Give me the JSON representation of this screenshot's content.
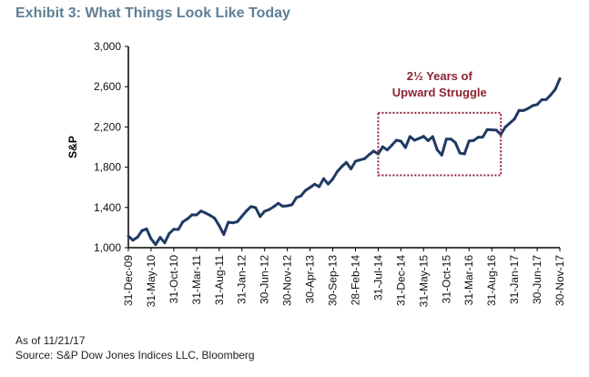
{
  "title": "Exhibit 3: What Things Look Like Today",
  "footnotes": {
    "as_of": "As of 11/21/17",
    "source": "Source: S&P Dow Jones Indices LLC, Bloomberg"
  },
  "chart_data": {
    "type": "line",
    "title": "Exhibit 3: What Things Look Like Today",
    "ylabel": "S&P",
    "xlabel": "",
    "ylim": [
      1000,
      3000
    ],
    "yticks": [
      1000,
      1400,
      1800,
      2200,
      2600,
      3000
    ],
    "ytick_labels": [
      "1,000",
      "1,400",
      "1,800",
      "2,200",
      "2,600",
      "3,000"
    ],
    "xlim": [
      "2009-12-31",
      "2017-11-30"
    ],
    "xtick_labels": [
      "31-Dec-09",
      "31-May-10",
      "31-Oct-10",
      "31-Mar-11",
      "31-Aug-11",
      "31-Jan-12",
      "30-Jun-12",
      "30-Nov-12",
      "30-Apr-13",
      "30-Sep-13",
      "28-Feb-14",
      "31-Jul-14",
      "31-Dec-14",
      "31-May-15",
      "31-Oct-15",
      "31-Mar-16",
      "31-Aug-16",
      "31-Jan-17",
      "30-Jun-17",
      "30-Nov-17"
    ],
    "grid": false,
    "line_color": "#1f3a64",
    "series": [
      {
        "x": [
          "2009-12",
          "2010-01",
          "2010-02",
          "2010-03",
          "2010-04",
          "2010-05",
          "2010-06",
          "2010-07",
          "2010-08",
          "2010-09",
          "2010-10",
          "2010-11",
          "2010-12",
          "2011-01",
          "2011-02",
          "2011-03",
          "2011-04",
          "2011-05",
          "2011-06",
          "2011-07",
          "2011-08",
          "2011-09",
          "2011-10",
          "2011-11",
          "2011-12",
          "2012-01",
          "2012-02",
          "2012-03",
          "2012-04",
          "2012-05",
          "2012-06",
          "2012-07",
          "2012-08",
          "2012-09",
          "2012-10",
          "2012-11",
          "2012-12",
          "2013-01",
          "2013-02",
          "2013-03",
          "2013-04",
          "2013-05",
          "2013-06",
          "2013-07",
          "2013-08",
          "2013-09",
          "2013-10",
          "2013-11",
          "2013-12",
          "2014-01",
          "2014-02",
          "2014-03",
          "2014-04",
          "2014-05",
          "2014-06",
          "2014-07",
          "2014-08",
          "2014-09",
          "2014-10",
          "2014-11",
          "2014-12",
          "2015-01",
          "2015-02",
          "2015-03",
          "2015-04",
          "2015-05",
          "2015-06",
          "2015-07",
          "2015-08",
          "2015-09",
          "2015-10",
          "2015-11",
          "2015-12",
          "2016-01",
          "2016-02",
          "2016-03",
          "2016-04",
          "2016-05",
          "2016-06",
          "2016-07",
          "2016-08",
          "2016-09",
          "2016-10",
          "2016-11",
          "2016-12",
          "2017-01",
          "2017-02",
          "2017-03",
          "2017-04",
          "2017-05",
          "2017-06",
          "2017-07",
          "2017-08",
          "2017-09",
          "2017-10",
          "2017-11"
        ],
        "values": [
          1115,
          1074,
          1104,
          1169,
          1187,
          1089,
          1031,
          1102,
          1049,
          1141,
          1183,
          1181,
          1258,
          1286,
          1327,
          1326,
          1364,
          1345,
          1321,
          1292,
          1219,
          1131,
          1253,
          1247,
          1258,
          1312,
          1366,
          1408,
          1398,
          1310,
          1362,
          1379,
          1407,
          1441,
          1412,
          1416,
          1426,
          1498,
          1515,
          1569,
          1598,
          1631,
          1606,
          1686,
          1633,
          1682,
          1757,
          1806,
          1848,
          1783,
          1859,
          1872,
          1884,
          1924,
          1960,
          1931,
          2003,
          1972,
          2018,
          2068,
          2059,
          1995,
          2105,
          2068,
          2086,
          2107,
          2063,
          2104,
          1972,
          1920,
          2079,
          2080,
          2044,
          1940,
          1932,
          2060,
          2065,
          2097,
          2099,
          2174,
          2171,
          2168,
          2126,
          2199,
          2239,
          2279,
          2364,
          2363,
          2384,
          2412,
          2423,
          2470,
          2472,
          2519,
          2575,
          2680
        ]
      }
    ],
    "annotations": [
      {
        "text_lines": [
          "2½ Years of",
          "Upward Struggle"
        ],
        "color": "#8b2332",
        "box_x": [
          "2014-07",
          "2016-10"
        ],
        "box_y": [
          1720,
          2340
        ],
        "box_style": "dotted"
      }
    ]
  }
}
